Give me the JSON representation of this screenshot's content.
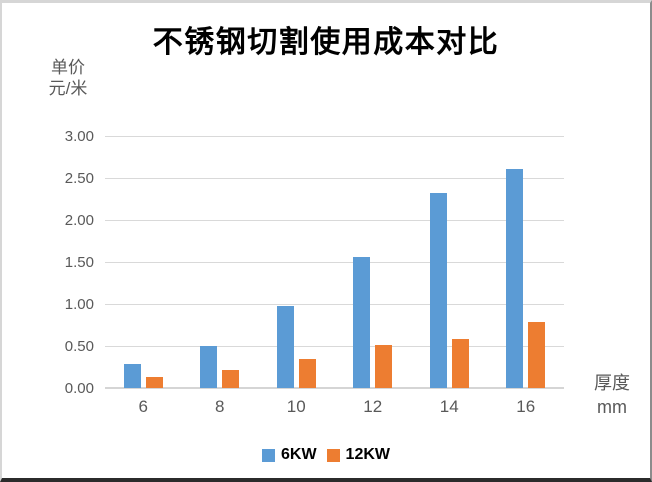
{
  "title": "不锈钢切割使用成本对比",
  "y_axis_unit": {
    "line1": "单价",
    "line2": "元/米"
  },
  "x_axis_unit": {
    "line1": "厚度",
    "line2": "mm"
  },
  "legend": {
    "items": [
      {
        "label": "6KW",
        "color": "#5B9BD5"
      },
      {
        "label": "12KW",
        "color": "#ED7D31"
      }
    ]
  },
  "colors": {
    "series_6kw": "#5B9BD5",
    "series_12kw": "#ED7D31",
    "gridline": "#d9d9d9",
    "axis_text": "#595959",
    "title_text": "#000000"
  },
  "chart_data": {
    "type": "bar",
    "title": "不锈钢切割使用成本对比",
    "categories": [
      "6",
      "8",
      "10",
      "12",
      "14",
      "16"
    ],
    "series": [
      {
        "name": "6KW",
        "color": "#5B9BD5",
        "values": [
          0.28,
          0.5,
          0.98,
          1.56,
          2.32,
          2.61
        ]
      },
      {
        "name": "12KW",
        "color": "#ED7D31",
        "values": [
          0.13,
          0.21,
          0.34,
          0.51,
          0.58,
          0.79
        ]
      }
    ],
    "ylabel": "单价 元/米",
    "xlabel": "厚度 mm",
    "ylim": [
      0,
      3.0
    ],
    "ytick_step": 0.5,
    "ytick_values": [
      0,
      0.5,
      1.0,
      1.5,
      2.0,
      2.5,
      3.0
    ],
    "ytick_labels": [
      "0.00",
      "0.50",
      "1.00",
      "1.50",
      "2.00",
      "2.50",
      "3.00"
    ],
    "grid": true,
    "legend_position": "bottom"
  }
}
